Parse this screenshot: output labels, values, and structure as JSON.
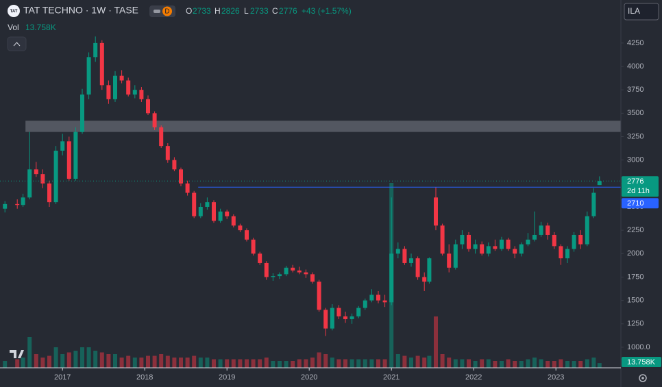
{
  "chart_data": {
    "type": "candlestick",
    "logo": "TAT",
    "title": "TAT TECHNO · 1W · TASE",
    "interval_badge": "D",
    "currency": "ILA",
    "volume_title": "Vol",
    "change_label": "+43 (+1.57%)",
    "ohlc_letters": [
      "O",
      "H",
      "L",
      "C"
    ],
    "countdown": "2d 11h",
    "up_color": "#089981",
    "down_color": "#f23645",
    "grid": false,
    "xlim": [
      2016.24,
      2023.79
    ],
    "ylim": [
      780,
      4505
    ],
    "vlim": [
      0,
      600
    ],
    "xticks": [
      2017,
      2018,
      2019,
      2020,
      2021,
      2022,
      2023
    ],
    "yticks": [
      {
        "value": 1000,
        "label": "1000.0"
      },
      1250,
      1500,
      1750,
      2000,
      2250,
      2500,
      2750,
      3000,
      3250,
      3500,
      3750,
      4000,
      4250
    ],
    "x": [
      2016.3,
      2016.45,
      2016.52,
      2016.6,
      2016.68,
      2016.76,
      2016.84,
      2016.92,
      2017.0,
      2017.08,
      2017.16,
      2017.24,
      2017.32,
      2017.4,
      2017.48,
      2017.56,
      2017.64,
      2017.72,
      2017.8,
      2017.88,
      2017.96,
      2018.04,
      2018.12,
      2018.2,
      2018.28,
      2018.36,
      2018.44,
      2018.52,
      2018.6,
      2018.68,
      2018.76,
      2018.84,
      2018.92,
      2019.0,
      2019.08,
      2019.16,
      2019.24,
      2019.32,
      2019.4,
      2019.48,
      2019.56,
      2019.64,
      2019.72,
      2019.8,
      2019.88,
      2019.96,
      2020.04,
      2020.12,
      2020.2,
      2020.28,
      2020.36,
      2020.44,
      2020.52,
      2020.6,
      2020.68,
      2020.76,
      2020.84,
      2020.92,
      2021.0,
      2021.08,
      2021.16,
      2021.24,
      2021.32,
      2021.4,
      2021.46,
      2021.54,
      2021.62,
      2021.7,
      2021.78,
      2021.86,
      2021.94,
      2022.02,
      2022.1,
      2022.18,
      2022.26,
      2022.34,
      2022.42,
      2022.5,
      2022.58,
      2022.66,
      2022.74,
      2022.82,
      2022.9,
      2022.98,
      2023.06,
      2023.14,
      2023.22,
      2023.3,
      2023.38,
      2023.46,
      2023.53
    ],
    "open": [
      2480,
      2530,
      2520,
      2600,
      2900,
      2850,
      2750,
      2550,
      3100,
      3200,
      2800,
      3300,
      3700,
      4100,
      4250,
      3800,
      3650,
      3900,
      3850,
      3700,
      3750,
      3650,
      3500,
      3350,
      3150,
      3000,
      2900,
      2750,
      2650,
      2400,
      2500,
      2550,
      2350,
      2450,
      2400,
      2300,
      2250,
      2150,
      2000,
      1900,
      1750,
      1760,
      1780,
      1850,
      1820,
      1800,
      1780,
      1700,
      1400,
      1200,
      1420,
      1330,
      1300,
      1330,
      1420,
      1500,
      1560,
      1500,
      1480,
      2000,
      2050,
      1900,
      1950,
      1750,
      1700,
      2600,
      2300,
      2000,
      1850,
      2100,
      2200,
      2050,
      2100,
      2000,
      2080,
      2050,
      2150,
      2050,
      2000,
      2100,
      2150,
      2200,
      2300,
      2200,
      2080,
      1950,
      2050,
      2200,
      2100,
      2400,
      2733
    ],
    "high": [
      2560,
      2580,
      2640,
      3300,
      2980,
      2900,
      2780,
      3150,
      3280,
      3250,
      3350,
      3760,
      4150,
      4320,
      4280,
      3850,
      3950,
      3960,
      3880,
      3800,
      3780,
      3690,
      3520,
      3370,
      3180,
      3030,
      2920,
      2780,
      2670,
      2540,
      2600,
      2570,
      2480,
      2470,
      2420,
      2320,
      2270,
      2170,
      2020,
      1920,
      1790,
      1800,
      1870,
      1880,
      1860,
      1830,
      1800,
      1720,
      1420,
      1460,
      1450,
      1380,
      1360,
      1440,
      1520,
      1620,
      1600,
      1560,
      2600,
      2120,
      2080,
      2000,
      1970,
      1800,
      1960,
      2710,
      2320,
      2100,
      2150,
      2250,
      2230,
      2150,
      2130,
      2120,
      2150,
      2180,
      2170,
      2080,
      2120,
      2220,
      2450,
      2340,
      2330,
      2230,
      2100,
      2080,
      2230,
      2250,
      2450,
      2700,
      2826
    ],
    "low": [
      2440,
      2480,
      2500,
      2580,
      2820,
      2700,
      2500,
      2530,
      3050,
      2780,
      2780,
      3280,
      3650,
      4050,
      3750,
      3600,
      3620,
      3820,
      3680,
      3660,
      3620,
      3480,
      3320,
      3130,
      2970,
      2880,
      2720,
      2620,
      2380,
      2380,
      2470,
      2330,
      2330,
      2370,
      2280,
      2230,
      2130,
      1980,
      1880,
      1720,
      1710,
      1730,
      1760,
      1800,
      1780,
      1740,
      1680,
      1380,
      1120,
      1180,
      1300,
      1260,
      1250,
      1310,
      1400,
      1480,
      1470,
      1430,
      1450,
      1950,
      1880,
      1860,
      1720,
      1600,
      1680,
      2250,
      1980,
      1800,
      1830,
      2050,
      2020,
      2000,
      1980,
      1970,
      2030,
      2030,
      2030,
      1950,
      1970,
      2080,
      2130,
      2180,
      2150,
      2050,
      1880,
      1900,
      2020,
      2050,
      2080,
      2380,
      2733
    ],
    "close": [
      2530,
      2520,
      2600,
      2900,
      2850,
      2750,
      2550,
      3100,
      3200,
      2800,
      3300,
      3700,
      4100,
      4250,
      3800,
      3650,
      3900,
      3850,
      3700,
      3750,
      3650,
      3500,
      3350,
      3150,
      3000,
      2900,
      2750,
      2650,
      2400,
      2500,
      2550,
      2350,
      2450,
      2400,
      2300,
      2250,
      2150,
      2000,
      1900,
      1750,
      1760,
      1780,
      1850,
      1820,
      1800,
      1780,
      1700,
      1400,
      1200,
      1420,
      1330,
      1300,
      1330,
      1420,
      1500,
      1560,
      1500,
      1480,
      2000,
      2050,
      1900,
      1950,
      1750,
      1700,
      1950,
      2300,
      2000,
      1850,
      2100,
      2200,
      2050,
      2100,
      2000,
      2080,
      2050,
      2150,
      2050,
      2000,
      2100,
      2150,
      2200,
      2300,
      2200,
      2080,
      1950,
      2050,
      2200,
      2100,
      2400,
      2650,
      2776
    ],
    "volume": [
      20,
      25,
      30,
      90,
      40,
      30,
      35,
      60,
      40,
      45,
      50,
      60,
      60,
      50,
      45,
      40,
      40,
      30,
      35,
      30,
      30,
      35,
      35,
      40,
      35,
      30,
      30,
      30,
      35,
      30,
      30,
      25,
      25,
      25,
      25,
      25,
      25,
      25,
      25,
      30,
      20,
      20,
      20,
      20,
      25,
      25,
      30,
      45,
      40,
      30,
      25,
      25,
      25,
      25,
      25,
      25,
      25,
      25,
      540,
      40,
      35,
      30,
      35,
      30,
      35,
      150,
      40,
      30,
      25,
      25,
      25,
      20,
      25,
      25,
      20,
      20,
      25,
      20,
      20,
      25,
      30,
      25,
      20,
      20,
      25,
      20,
      20,
      20,
      25,
      30,
      13.758
    ],
    "volume_label": "13.758K",
    "hline": 2710,
    "hline_from": 2018.65,
    "zone": [
      3300,
      3420
    ],
    "zone_from": 2016.55
  }
}
